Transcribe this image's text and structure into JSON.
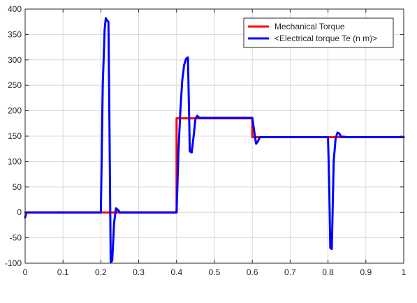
{
  "chart_data": {
    "type": "line",
    "title": "",
    "xlabel": "",
    "ylabel": "",
    "xlim": [
      0,
      1
    ],
    "ylim": [
      -100,
      400
    ],
    "x_ticks": [
      0,
      0.1,
      0.2,
      0.3,
      0.4,
      0.5,
      0.6,
      0.7,
      0.8,
      0.9,
      1
    ],
    "x_tick_labels": [
      "0",
      "0.1",
      "0.2",
      "0.3",
      "0.4",
      "0.5",
      "0.6",
      "0.7",
      "0.8",
      "0.9",
      "1"
    ],
    "y_ticks": [
      -100,
      -50,
      0,
      50,
      100,
      150,
      200,
      250,
      300,
      350,
      400
    ],
    "y_tick_labels": [
      "-100",
      "-50",
      "0",
      "50",
      "100",
      "150",
      "200",
      "250",
      "300",
      "350",
      "400"
    ],
    "grid": true,
    "legend_position": "top-right",
    "series": [
      {
        "name": "Mechanical  Torque",
        "color": "#ff0000",
        "x": [
          0,
          0.4,
          0.4,
          0.6,
          0.6,
          1.0
        ],
        "y": [
          0,
          0,
          185,
          185,
          148,
          148
        ]
      },
      {
        "name": "<Electrical torque Te (n m)>",
        "color": "#0000ff",
        "x": [
          0,
          0.003,
          0.008,
          0.2,
          0.205,
          0.21,
          0.213,
          0.216,
          0.22,
          0.223,
          0.226,
          0.23,
          0.235,
          0.24,
          0.245,
          0.25,
          0.26,
          0.4,
          0.405,
          0.41,
          0.415,
          0.42,
          0.425,
          0.43,
          0.435,
          0.44,
          0.445,
          0.45,
          0.455,
          0.46,
          0.6,
          0.605,
          0.61,
          0.615,
          0.62,
          0.625,
          0.8,
          0.803,
          0.806,
          0.81,
          0.815,
          0.82,
          0.825,
          0.83,
          0.835,
          0.84,
          0.85,
          1.0
        ],
        "y": [
          -10,
          0,
          0,
          0,
          250,
          360,
          382,
          378,
          375,
          150,
          -98,
          -95,
          -20,
          8,
          5,
          0,
          0,
          0,
          120,
          200,
          260,
          290,
          302,
          305,
          120,
          118,
          150,
          185,
          190,
          186,
          186,
          160,
          135,
          140,
          148,
          148,
          148,
          60,
          -70,
          -72,
          100,
          145,
          157,
          155,
          148,
          149,
          148,
          148
        ]
      }
    ]
  }
}
